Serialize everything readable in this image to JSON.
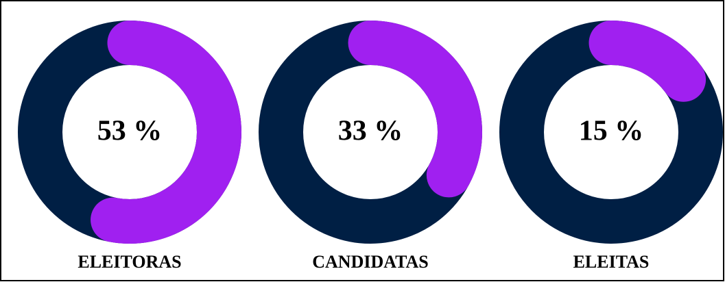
{
  "chart_data": [
    {
      "type": "donut",
      "label": "ELEITORAS",
      "values": [
        53
      ],
      "value_labels": [
        "53 %"
      ],
      "color": "#a020f0",
      "track_color": "#001f44",
      "ylim": [
        0,
        100
      ]
    },
    {
      "type": "donut",
      "label": "CANDIDATAS",
      "values": [
        33
      ],
      "value_labels": [
        "33 %"
      ],
      "color": "#a020f0",
      "track_color": "#001f44",
      "ylim": [
        0,
        100
      ]
    },
    {
      "type": "donut",
      "label": "ELEITAS",
      "values": [
        15
      ],
      "value_labels": [
        "15 %"
      ],
      "color": "#a020f0",
      "track_color": "#001f44",
      "ylim": [
        0,
        100
      ]
    }
  ]
}
